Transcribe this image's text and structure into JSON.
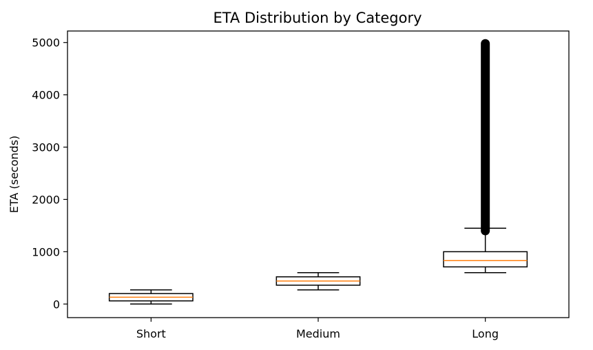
{
  "chart_data": {
    "type": "boxplot",
    "title": "ETA Distribution by Category",
    "xlabel": "",
    "ylabel": "ETA (seconds)",
    "ylim": [
      -260,
      5220
    ],
    "yticks": [
      0,
      1000,
      2000,
      3000,
      4000,
      5000
    ],
    "categories": [
      "Short",
      "Medium",
      "Long"
    ],
    "boxes": [
      {
        "category": "Short",
        "whisker_low": 0,
        "q1": 60,
        "median": 130,
        "q3": 200,
        "whisker_high": 270,
        "outliers_range": null
      },
      {
        "category": "Medium",
        "whisker_low": 270,
        "q1": 360,
        "median": 440,
        "q3": 520,
        "whisker_high": 600,
        "outliers_range": null
      },
      {
        "category": "Long",
        "whisker_low": 600,
        "q1": 710,
        "median": 830,
        "q3": 1000,
        "whisker_high": 1450,
        "outliers_range": [
          1400,
          4980
        ]
      }
    ],
    "grid": false,
    "legend": "none",
    "colors": {
      "box": "#000000",
      "median": "#ff7f0e",
      "outlier": "#000000"
    }
  }
}
